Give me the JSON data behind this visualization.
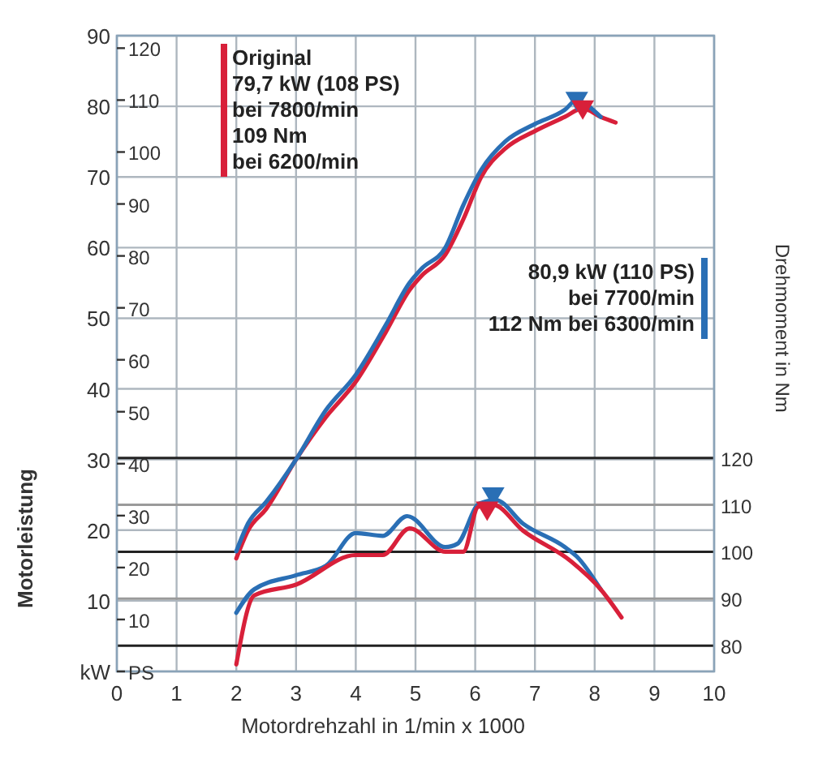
{
  "chart_data": {
    "type": "line",
    "xlabel": "Motordrehzahl in 1/min x 1000",
    "ylabel": "Motorleistung",
    "y3label": "Drehmoment in Nm",
    "xlim": [
      0,
      10
    ],
    "xticks": [
      0,
      1,
      2,
      3,
      4,
      5,
      6,
      7,
      8,
      9,
      10
    ],
    "ylim": [
      0,
      90
    ],
    "yticks": [
      {
        "value": 0,
        "label": "kW"
      },
      10,
      20,
      30,
      40,
      50,
      60,
      70,
      80,
      90
    ],
    "y2lim": [
      0,
      122.4
    ],
    "y2ticks": [
      {
        "value": 0,
        "label": "PS"
      },
      10,
      20,
      30,
      40,
      50,
      60,
      70,
      80,
      90,
      100,
      110,
      120
    ],
    "y3lim": [
      74.5,
      210
    ],
    "y3ticks": [
      80,
      90,
      100,
      110,
      120
    ],
    "grid": true,
    "line_style": "solid",
    "annotations": [
      "Original\n79,7 kW (108 PS)\nbei 7800/min\n109 Nm\nbei 6200/min",
      "80,9 kW (110 PS)\nbei 7700/min\n112 Nm bei 6300/min"
    ],
    "series": [
      {
        "color": "#d8203a",
        "x": [
          2,
          2.2,
          2.5,
          3,
          3.5,
          4,
          4.5,
          4.9,
          5.1,
          5.5,
          5.8,
          6.1,
          6.5,
          7,
          7.5,
          7.8,
          8.1,
          8.35
        ],
        "values": [
          16,
          20,
          23,
          30,
          36,
          41,
          48,
          54,
          56,
          59,
          64,
          70,
          74,
          76.5,
          78.5,
          79.7,
          78.5,
          77.7
        ]
      },
      {
        "color": "#2a6fb5",
        "x": [
          2,
          2.2,
          2.5,
          3,
          3.5,
          4,
          4.5,
          4.9,
          5.1,
          5.5,
          5.8,
          6.1,
          6.5,
          7,
          7.5,
          7.7,
          7.9,
          8.1
        ],
        "values": [
          17,
          21,
          24,
          30,
          37,
          42,
          49,
          55,
          57,
          60,
          66,
          71,
          75,
          77.5,
          79.5,
          80.9,
          80,
          78.5
        ]
      },
      {
        "color": "#2a6fb5",
        "axis": "y3",
        "x": [
          2,
          2.3,
          3,
          3.5,
          4,
          4.45,
          4.86,
          5.5,
          5.7,
          6.07,
          6.35,
          6.8,
          7.5,
          7.7,
          8.1
        ],
        "values": [
          87,
          92,
          95,
          97,
          104,
          103.4,
          107.6,
          101,
          101.7,
          110.3,
          111,
          106,
          101,
          99,
          92
        ]
      },
      {
        "color": "#d8203a",
        "axis": "y3",
        "x": [
          2,
          2.3,
          3,
          4,
          4.45,
          4.9,
          5.5,
          5.8,
          6.05,
          6.3,
          6.8,
          7.6,
          8.1,
          8.45
        ],
        "values": [
          76,
          90.7,
          93,
          99.3,
          99.3,
          105,
          100,
          100,
          109.6,
          110,
          104.5,
          98,
          92,
          86
        ]
      },
      {
        "type": "scatter",
        "marker": "triangle",
        "color": "#2a6fb5",
        "x": [
          7.7
        ],
        "values": [
          80.9
        ]
      },
      {
        "type": "scatter",
        "marker": "triangle",
        "color": "#d8203a",
        "x": [
          7.8
        ],
        "values": [
          79.7
        ]
      },
      {
        "type": "scatter",
        "marker": "triangle",
        "color": "#2a6fb5",
        "axis": "y3",
        "x": [
          6.3
        ],
        "values": [
          112
        ]
      },
      {
        "type": "scatter",
        "marker": "triangle",
        "color": "#d8203a",
        "axis": "y3",
        "x": [
          6.2
        ],
        "values": [
          109
        ]
      }
    ]
  }
}
